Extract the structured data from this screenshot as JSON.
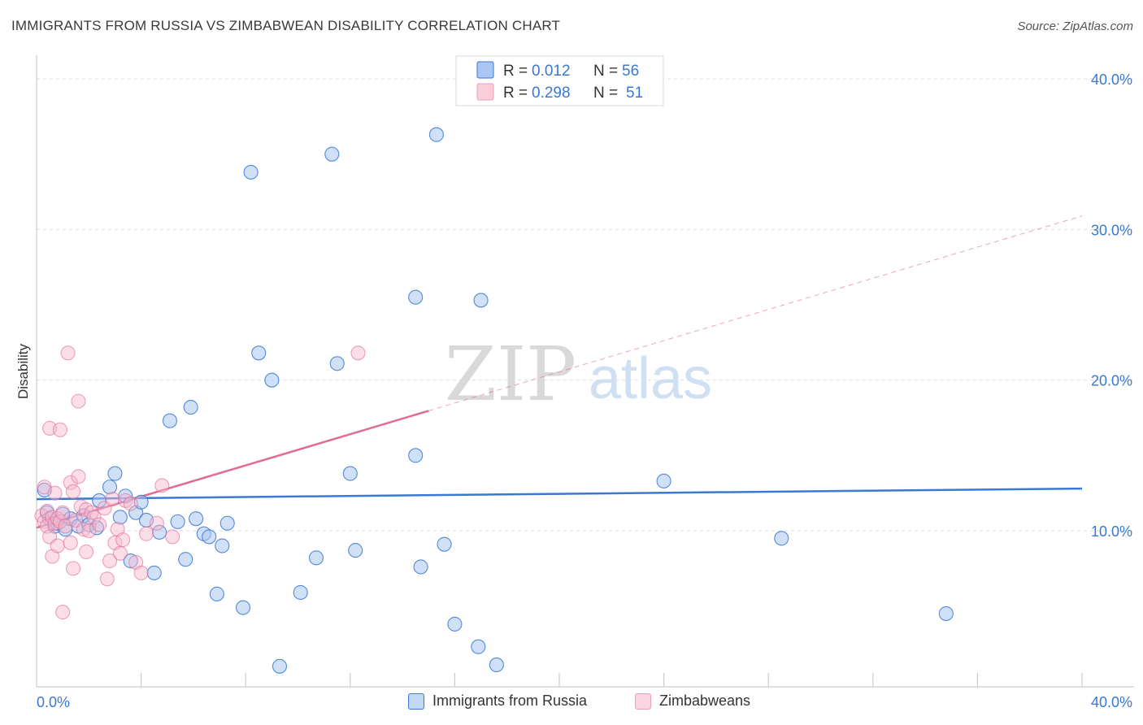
{
  "title": "IMMIGRANTS FROM RUSSIA VS ZIMBABWEAN DISABILITY CORRELATION CHART",
  "source": "Source: ZipAtlas.com",
  "watermark": {
    "zip": "ZIP",
    "atlas": "atlas"
  },
  "colors": {
    "blue": "#3a78d1",
    "blue_fill": "#a9c7f0",
    "pink": "#e06b93",
    "pink_fill": "#f6b6cb",
    "axis_label": "#3a78d1",
    "grid": "#dddddd"
  },
  "legend_top": [
    {
      "r_label": "R =",
      "r_value": "0.012",
      "n_label": "N =",
      "n_value": "56"
    },
    {
      "r_label": "R =",
      "r_value": "0.298",
      "n_label": "N =",
      "n_value": "51"
    }
  ],
  "legend_bottom": [
    "Immigrants from Russia",
    "Zimbabweans"
  ],
  "chart_data": {
    "type": "scatter",
    "title": "IMMIGRANTS FROM RUSSIA VS ZIMBABWEAN DISABILITY CORRELATION CHART",
    "xlabel": "",
    "ylabel": "Disability",
    "xlim": [
      0,
      40
    ],
    "ylim": [
      0,
      40
    ],
    "x_tick_labels": [
      "0.0%",
      "40.0%"
    ],
    "y_tick_labels": [
      "10.0%",
      "20.0%",
      "30.0%",
      "40.0%"
    ],
    "y_ticks": [
      10,
      20,
      30,
      40
    ],
    "grid": true,
    "series": [
      {
        "name": "Immigrants from Russia",
        "color": "#3a78d1",
        "fill": "#a9c7f0",
        "r": 0.012,
        "n": 56,
        "trend": {
          "x0": 0,
          "y0": 12.1,
          "x1": 40,
          "y1": 12.8,
          "solid_until": 40
        },
        "points": [
          [
            0.3,
            12.7
          ],
          [
            0.4,
            11.2
          ],
          [
            0.5,
            10.8
          ],
          [
            0.7,
            10.3
          ],
          [
            0.8,
            10.5
          ],
          [
            1.0,
            11.1
          ],
          [
            1.1,
            10.1
          ],
          [
            1.3,
            10.8
          ],
          [
            1.6,
            10.3
          ],
          [
            1.8,
            11.0
          ],
          [
            2.0,
            10.4
          ],
          [
            2.3,
            10.2
          ],
          [
            2.4,
            12.0
          ],
          [
            2.8,
            12.9
          ],
          [
            3.0,
            13.8
          ],
          [
            3.2,
            10.9
          ],
          [
            3.4,
            12.3
          ],
          [
            3.6,
            8.0
          ],
          [
            3.8,
            11.2
          ],
          [
            4.0,
            11.9
          ],
          [
            4.2,
            10.7
          ],
          [
            4.5,
            7.2
          ],
          [
            4.7,
            9.9
          ],
          [
            5.1,
            17.3
          ],
          [
            5.4,
            10.6
          ],
          [
            5.7,
            8.1
          ],
          [
            5.9,
            18.2
          ],
          [
            6.1,
            10.8
          ],
          [
            6.4,
            9.8
          ],
          [
            6.6,
            9.6
          ],
          [
            6.9,
            5.8
          ],
          [
            7.1,
            9.0
          ],
          [
            7.3,
            10.5
          ],
          [
            7.9,
            4.9
          ],
          [
            8.2,
            33.8
          ],
          [
            8.5,
            21.8
          ],
          [
            9.0,
            20.0
          ],
          [
            9.3,
            1.0
          ],
          [
            10.1,
            5.9
          ],
          [
            10.7,
            8.2
          ],
          [
            11.3,
            35.0
          ],
          [
            11.5,
            21.1
          ],
          [
            12.0,
            13.8
          ],
          [
            12.2,
            8.7
          ],
          [
            14.5,
            15.0
          ],
          [
            14.5,
            25.5
          ],
          [
            14.7,
            7.6
          ],
          [
            15.3,
            36.3
          ],
          [
            15.6,
            9.1
          ],
          [
            16.0,
            3.8
          ],
          [
            16.9,
            2.3
          ],
          [
            17.0,
            25.3
          ],
          [
            17.6,
            1.1
          ],
          [
            24.0,
            13.3
          ],
          [
            28.5,
            9.5
          ],
          [
            34.8,
            4.5
          ]
        ]
      },
      {
        "name": "Zimbabweans",
        "color": "#e06b93",
        "fill": "#f6b6cb",
        "r": 0.298,
        "n": 51,
        "trend": {
          "x0": 0,
          "y0": 10.2,
          "x1": 40,
          "y1": 30.9,
          "solid_until": 15
        },
        "points": [
          [
            0.2,
            11.0
          ],
          [
            0.3,
            10.6
          ],
          [
            0.3,
            12.9
          ],
          [
            0.4,
            10.3
          ],
          [
            0.4,
            11.3
          ],
          [
            0.5,
            9.6
          ],
          [
            0.5,
            16.8
          ],
          [
            0.6,
            10.9
          ],
          [
            0.6,
            8.3
          ],
          [
            0.7,
            10.5
          ],
          [
            0.7,
            12.5
          ],
          [
            0.8,
            10.8
          ],
          [
            0.8,
            9.0
          ],
          [
            0.9,
            10.6
          ],
          [
            0.9,
            16.7
          ],
          [
            1.0,
            11.2
          ],
          [
            1.0,
            4.6
          ],
          [
            1.1,
            10.3
          ],
          [
            1.2,
            21.8
          ],
          [
            1.3,
            13.2
          ],
          [
            1.3,
            9.2
          ],
          [
            1.4,
            7.5
          ],
          [
            1.4,
            12.6
          ],
          [
            1.5,
            10.7
          ],
          [
            1.6,
            18.6
          ],
          [
            1.6,
            13.6
          ],
          [
            1.7,
            11.6
          ],
          [
            1.8,
            10.1
          ],
          [
            1.9,
            11.4
          ],
          [
            1.9,
            8.6
          ],
          [
            2.0,
            10.0
          ],
          [
            2.1,
            11.2
          ],
          [
            2.2,
            10.9
          ],
          [
            2.4,
            10.4
          ],
          [
            2.6,
            11.5
          ],
          [
            2.7,
            6.8
          ],
          [
            2.8,
            8.0
          ],
          [
            2.9,
            12.1
          ],
          [
            3.0,
            9.2
          ],
          [
            3.1,
            10.1
          ],
          [
            3.2,
            8.5
          ],
          [
            3.3,
            9.4
          ],
          [
            3.4,
            12.0
          ],
          [
            3.6,
            11.8
          ],
          [
            3.8,
            7.9
          ],
          [
            4.0,
            7.2
          ],
          [
            4.2,
            9.8
          ],
          [
            4.6,
            10.5
          ],
          [
            4.8,
            13.0
          ],
          [
            5.2,
            9.6
          ],
          [
            12.3,
            21.8
          ]
        ]
      }
    ]
  }
}
